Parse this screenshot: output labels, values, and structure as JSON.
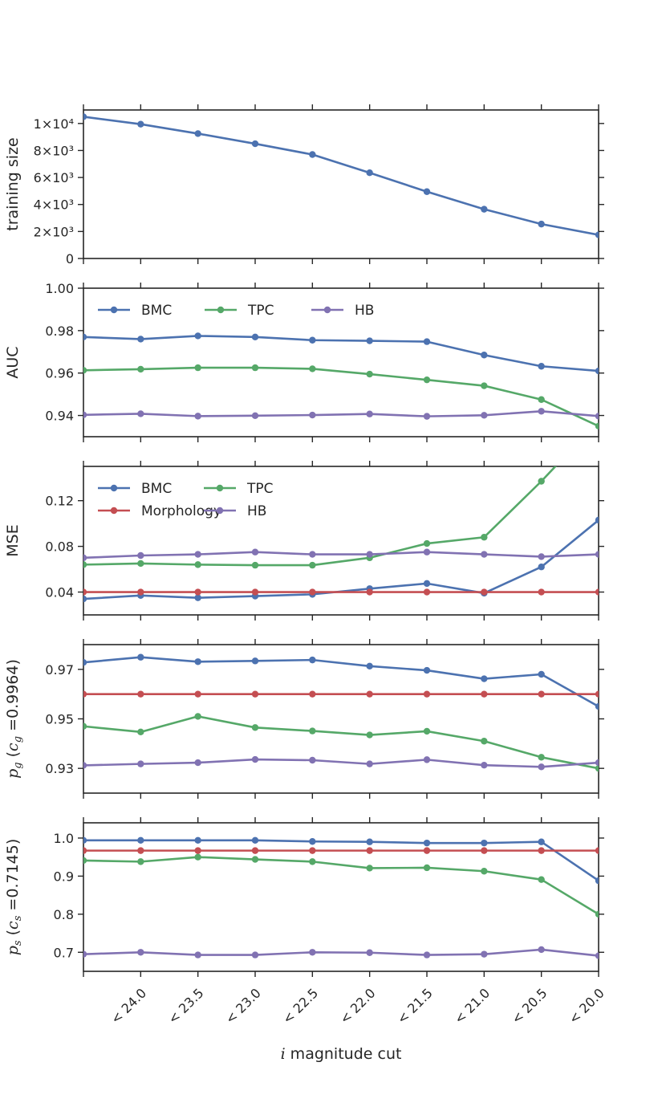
{
  "chart_data": [
    {
      "type": "line",
      "ylabel": "training size",
      "ylim": [
        0,
        11000
      ],
      "yticks": [
        {
          "value": 0,
          "label": "0"
        },
        {
          "value": 2000,
          "label": "2×10³"
        },
        {
          "value": 4000,
          "label": "4×10³"
        },
        {
          "value": 6000,
          "label": "6×10³"
        },
        {
          "value": 8000,
          "label": "8×10³"
        },
        {
          "value": 10000,
          "label": "1×10⁴"
        }
      ],
      "legend": null,
      "series": [
        {
          "name": "BMC",
          "color": "#4c72b0",
          "values": [
            10500,
            9950,
            9250,
            8500,
            7700,
            6350,
            4950,
            3650,
            2550,
            1750
          ]
        }
      ]
    },
    {
      "type": "line",
      "ylabel": "AUC",
      "ylim": [
        0.93,
        1.0
      ],
      "yticks": [
        {
          "value": 0.94,
          "label": "0.94"
        },
        {
          "value": 0.96,
          "label": "0.96"
        },
        {
          "value": 0.98,
          "label": "0.98"
        },
        {
          "value": 1.0,
          "label": "1.00"
        }
      ],
      "legend": {
        "location": "upper-left",
        "columns": 3
      },
      "series": [
        {
          "name": "BMC",
          "color": "#4c72b0",
          "values": [
            0.977,
            0.976,
            0.9775,
            0.977,
            0.9755,
            0.9752,
            0.9748,
            0.9685,
            0.9632,
            0.961
          ]
        },
        {
          "name": "TPC",
          "color": "#55a868",
          "values": [
            0.9613,
            0.9618,
            0.9625,
            0.9625,
            0.962,
            0.9595,
            0.9568,
            0.954,
            0.9475,
            0.935
          ]
        },
        {
          "name": "HB",
          "color": "#8172b2",
          "values": [
            0.9403,
            0.9408,
            0.9397,
            0.9399,
            0.9402,
            0.9407,
            0.9396,
            0.9401,
            0.942,
            0.9397
          ]
        }
      ]
    },
    {
      "type": "line",
      "ylabel": "MSE",
      "ylim": [
        0.02,
        0.15
      ],
      "yticks": [
        {
          "value": 0.04,
          "label": "0.04"
        },
        {
          "value": 0.08,
          "label": "0.08"
        },
        {
          "value": 0.12,
          "label": "0.12"
        }
      ],
      "legend": {
        "location": "upper-left",
        "columns": 2
      },
      "series": [
        {
          "name": "BMC",
          "color": "#4c72b0",
          "values": [
            0.034,
            0.037,
            0.035,
            0.0365,
            0.038,
            0.043,
            0.0475,
            0.039,
            0.062,
            0.103
          ]
        },
        {
          "name": "TPC",
          "color": "#55a868",
          "values": [
            0.064,
            0.065,
            0.064,
            0.0635,
            0.0635,
            0.07,
            0.0825,
            0.088,
            0.137,
            0.19
          ]
        },
        {
          "name": "Morphology",
          "color": "#c44e52",
          "values": [
            0.04,
            0.04,
            0.04,
            0.04,
            0.04,
            0.04,
            0.04,
            0.04,
            0.04,
            0.04
          ]
        },
        {
          "name": "HB",
          "color": "#8172b2",
          "values": [
            0.07,
            0.072,
            0.073,
            0.075,
            0.073,
            0.073,
            0.075,
            0.073,
            0.071,
            0.073
          ]
        }
      ]
    },
    {
      "type": "line",
      "ylabel": "p_g (c_g = 0.9964)",
      "ylim": [
        0.92,
        0.98
      ],
      "yticks": [
        {
          "value": 0.93,
          "label": "0.93"
        },
        {
          "value": 0.95,
          "label": "0.95"
        },
        {
          "value": 0.97,
          "label": "0.97"
        }
      ],
      "legend": null,
      "series": [
        {
          "name": "BMC",
          "color": "#4c72b0",
          "values": [
            0.9728,
            0.9749,
            0.9731,
            0.9734,
            0.9738,
            0.9713,
            0.9696,
            0.9662,
            0.968,
            0.955
          ]
        },
        {
          "name": "TPC",
          "color": "#55a868",
          "values": [
            0.947,
            0.9447,
            0.951,
            0.9465,
            0.9451,
            0.9435,
            0.945,
            0.941,
            0.9345,
            0.93
          ]
        },
        {
          "name": "Morphology",
          "color": "#c44e52",
          "values": [
            0.96,
            0.96,
            0.96,
            0.96,
            0.96,
            0.96,
            0.96,
            0.96,
            0.96,
            0.96
          ]
        },
        {
          "name": "HB",
          "color": "#8172b2",
          "values": [
            0.9312,
            0.9318,
            0.9323,
            0.9336,
            0.9333,
            0.9318,
            0.9335,
            0.9313,
            0.9306,
            0.9323
          ]
        }
      ]
    },
    {
      "type": "line",
      "ylabel": "p_s (c_s = 0.7145)",
      "ylim": [
        0.65,
        1.04
      ],
      "yticks": [
        {
          "value": 0.7,
          "label": "0.7"
        },
        {
          "value": 0.8,
          "label": "0.8"
        },
        {
          "value": 0.9,
          "label": "0.9"
        },
        {
          "value": 1.0,
          "label": "1.0"
        }
      ],
      "legend": null,
      "series": [
        {
          "name": "BMC",
          "color": "#4c72b0",
          "values": [
            0.994,
            0.994,
            0.994,
            0.994,
            0.991,
            0.99,
            0.987,
            0.987,
            0.99,
            0.888
          ]
        },
        {
          "name": "TPC",
          "color": "#55a868",
          "values": [
            0.941,
            0.938,
            0.95,
            0.944,
            0.938,
            0.921,
            0.922,
            0.913,
            0.891,
            0.8
          ]
        },
        {
          "name": "Morphology",
          "color": "#c44e52",
          "values": [
            0.967,
            0.967,
            0.967,
            0.967,
            0.967,
            0.967,
            0.967,
            0.967,
            0.967,
            0.967
          ]
        },
        {
          "name": "HB",
          "color": "#8172b2",
          "values": [
            0.695,
            0.7,
            0.693,
            0.693,
            0.7,
            0.699,
            0.693,
            0.695,
            0.707,
            0.691
          ]
        }
      ]
    }
  ],
  "x_axis": {
    "label": "i magnitude cut",
    "label_var": "i",
    "label_text": " magnitude cut",
    "categories": [
      "",
      "< 24.0",
      "< 23.5",
      "< 23.0",
      "< 22.5",
      "< 22.0",
      "< 21.5",
      "< 21.0",
      "< 20.5",
      "< 20.0"
    ]
  },
  "ylabel_parts": {
    "pg": {
      "main": "p",
      "sub": "g",
      "open": " (",
      "c": "c",
      "csub": "g",
      "eq": " =0.9964)"
    },
    "ps": {
      "main": "p",
      "sub": "s",
      "open": " (",
      "c": "c",
      "csub": "s",
      "eq": " =0.7145)"
    }
  }
}
